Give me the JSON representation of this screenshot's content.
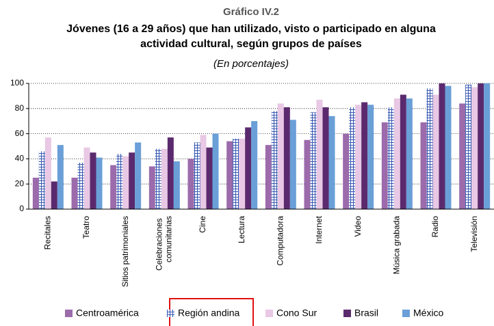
{
  "chart_data": {
    "type": "bar",
    "title": "Gráfico IV.2",
    "subtitle_lines": [
      "Jóvenes (16 a 29 años) que han utilizado, visto o participado en alguna",
      "actividad cultural, según grupos de países"
    ],
    "note": "(En porcentajes)",
    "categories": [
      "Recitales",
      "Teatro",
      "Sitios patrimoniales",
      "Celebraciones comunitarias",
      "Cine",
      "Lectura",
      "Computadora",
      "Internet",
      "Video",
      "Música grabada",
      "Radio",
      "Televisión"
    ],
    "series": [
      {
        "name": "Centroamérica",
        "color": "#9b6bab",
        "values": [
          25,
          25,
          35,
          34,
          40,
          54,
          51,
          55,
          60,
          69,
          69,
          84
        ]
      },
      {
        "name": "Región andina",
        "color": "#3355b0",
        "hatch": true,
        "values": [
          46,
          37,
          44,
          48,
          53,
          56,
          78,
          77,
          81,
          81,
          96,
          99
        ]
      },
      {
        "name": "Cono Sur",
        "color": "#e8c8e4",
        "values": [
          57,
          49,
          42,
          48,
          59,
          56,
          84,
          87,
          83,
          88,
          91,
          97
        ]
      },
      {
        "name": "Brasil",
        "color": "#5b2a6e",
        "values": [
          22,
          45,
          45,
          57,
          49,
          65,
          81,
          81,
          85,
          91,
          100,
          100
        ]
      },
      {
        "name": "México",
        "color": "#6a9fd8",
        "values": [
          51,
          41,
          53,
          38,
          60,
          70,
          71,
          74,
          83,
          88,
          98,
          100
        ]
      }
    ],
    "ylim": [
      0,
      100
    ],
    "yticks": [
      0,
      20,
      40,
      60,
      80,
      100
    ],
    "grid": true
  }
}
